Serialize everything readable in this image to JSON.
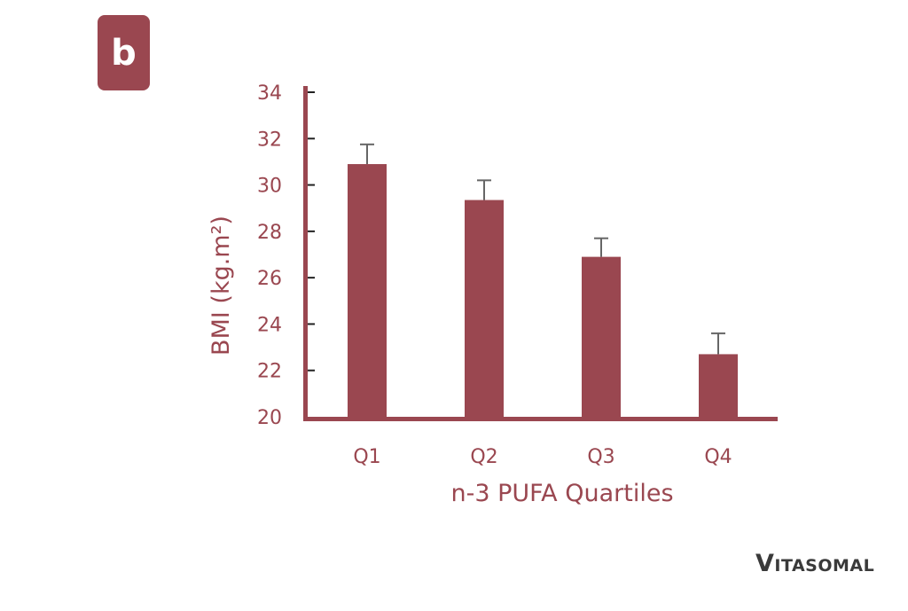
{
  "panel_label": "b",
  "logo_text": "Vitasomal",
  "colors": {
    "bar": "#9a4750",
    "axis": "#9a4750",
    "error_bar": "#666666",
    "text": "#9a4750"
  },
  "chart_data": {
    "type": "bar",
    "title": "",
    "xlabel": "n-3 PUFA Quartiles",
    "ylabel": "BMI (kg.m²)",
    "categories": [
      "Q1",
      "Q2",
      "Q3",
      "Q4"
    ],
    "values": [
      30.9,
      29.35,
      26.9,
      22.7
    ],
    "error_upper": [
      31.75,
      30.2,
      27.7,
      23.6
    ],
    "ylim": [
      20,
      34
    ],
    "yticks": [
      20,
      22,
      24,
      26,
      28,
      30,
      32,
      34
    ],
    "grid": false,
    "legend": "none"
  }
}
